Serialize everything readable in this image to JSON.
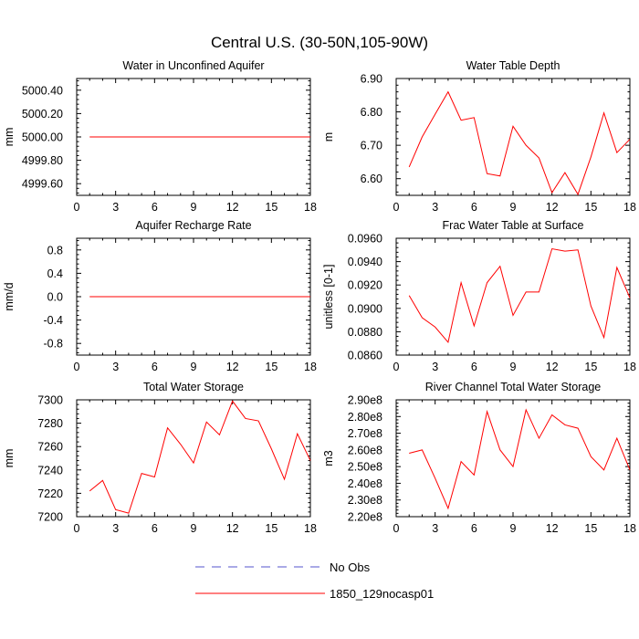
{
  "figure_title": "Central U.S. (30-50N,105-90W)",
  "legend": {
    "items": [
      {
        "label": "No Obs",
        "color": "#5555cc",
        "style": "dashed"
      },
      {
        "label": "1850_129nocasp01",
        "color": "#ff0000",
        "style": "solid"
      }
    ]
  },
  "chart_data": [
    {
      "type": "line",
      "title": "Water in Unconfined Aquifer",
      "ylabel": "mm",
      "xlabel": "",
      "xlim": [
        0,
        18
      ],
      "ylim": [
        4999.5,
        5000.5
      ],
      "xticks": [
        0,
        3,
        6,
        9,
        12,
        15,
        18
      ],
      "yticks": [
        4999.6,
        4999.8,
        5000.0,
        5000.2,
        5000.4
      ],
      "ytick_labels": [
        "4999.60",
        "4999.80",
        "5000.00",
        "5000.20",
        "5000.40"
      ],
      "series": [
        {
          "name": "1850_129nocasp01",
          "color": "#ff0000",
          "x": [
            1,
            2,
            3,
            4,
            5,
            6,
            7,
            8,
            9,
            10,
            11,
            12,
            13,
            14,
            15,
            16,
            17,
            18
          ],
          "y": [
            5000,
            5000,
            5000,
            5000,
            5000,
            5000,
            5000,
            5000,
            5000,
            5000,
            5000,
            5000,
            5000,
            5000,
            5000,
            5000,
            5000,
            5000
          ]
        }
      ]
    },
    {
      "type": "line",
      "title": "Water Table Depth",
      "ylabel": "m",
      "xlabel": "",
      "xlim": [
        0,
        18
      ],
      "ylim": [
        6.55,
        6.9
      ],
      "xticks": [
        0,
        3,
        6,
        9,
        12,
        15,
        18
      ],
      "yticks": [
        6.6,
        6.7,
        6.8,
        6.9
      ],
      "ytick_labels": [
        "6.60",
        "6.70",
        "6.80",
        "6.90"
      ],
      "series": [
        {
          "name": "1850_129nocasp01",
          "color": "#ff0000",
          "x": [
            1,
            2,
            3,
            4,
            5,
            6,
            7,
            8,
            9,
            10,
            11,
            12,
            13,
            14,
            15,
            16,
            17,
            18
          ],
          "y": [
            6.635,
            6.725,
            6.793,
            6.86,
            6.775,
            6.783,
            6.615,
            6.608,
            6.757,
            6.7,
            6.662,
            6.558,
            6.618,
            6.553,
            6.665,
            6.797,
            6.678,
            6.718
          ]
        }
      ]
    },
    {
      "type": "line",
      "title": "Aquifer Recharge Rate",
      "ylabel": "mm/d",
      "xlabel": "",
      "xlim": [
        0,
        18
      ],
      "ylim": [
        -1.0,
        1.0
      ],
      "xticks": [
        0,
        3,
        6,
        9,
        12,
        15,
        18
      ],
      "yticks": [
        -0.8,
        -0.4,
        0.0,
        0.4,
        0.8
      ],
      "ytick_labels": [
        "-0.8",
        "-0.4",
        "0.0",
        "0.4",
        "0.8"
      ],
      "series": [
        {
          "name": "1850_129nocasp01",
          "color": "#ff0000",
          "x": [
            1,
            2,
            3,
            4,
            5,
            6,
            7,
            8,
            9,
            10,
            11,
            12,
            13,
            14,
            15,
            16,
            17,
            18
          ],
          "y": [
            0,
            0,
            0,
            0,
            0,
            0,
            0,
            0,
            0,
            0,
            0,
            0,
            0,
            0,
            0,
            0,
            0,
            0
          ]
        }
      ]
    },
    {
      "type": "line",
      "title": "Frac Water Table at Surface",
      "ylabel": "unitless [0-1]",
      "xlabel": "",
      "xlim": [
        0,
        18
      ],
      "ylim": [
        0.086,
        0.096
      ],
      "xticks": [
        0,
        3,
        6,
        9,
        12,
        15,
        18
      ],
      "yticks": [
        0.086,
        0.088,
        0.09,
        0.092,
        0.094,
        0.096
      ],
      "ytick_labels": [
        "0.0860",
        "0.0880",
        "0.0900",
        "0.0920",
        "0.0940",
        "0.0960"
      ],
      "series": [
        {
          "name": "1850_129nocasp01",
          "color": "#ff0000",
          "x": [
            1,
            2,
            3,
            4,
            5,
            6,
            7,
            8,
            9,
            10,
            11,
            12,
            13,
            14,
            15,
            16,
            17,
            18
          ],
          "y": [
            0.0911,
            0.0892,
            0.0884,
            0.0871,
            0.0922,
            0.0885,
            0.0922,
            0.0936,
            0.0894,
            0.0914,
            0.0914,
            0.0951,
            0.0949,
            0.095,
            0.0902,
            0.0875,
            0.0935,
            0.0909
          ]
        }
      ]
    },
    {
      "type": "line",
      "title": "Total Water Storage",
      "ylabel": "mm",
      "xlabel": "",
      "xlim": [
        0,
        18
      ],
      "ylim": [
        7200,
        7300
      ],
      "xticks": [
        0,
        3,
        6,
        9,
        12,
        15,
        18
      ],
      "yticks": [
        7200,
        7220,
        7240,
        7260,
        7280,
        7300
      ],
      "ytick_labels": [
        "7200",
        "7220",
        "7240",
        "7260",
        "7280",
        "7300"
      ],
      "series": [
        {
          "name": "1850_129nocasp01",
          "color": "#ff0000",
          "x": [
            1,
            2,
            3,
            4,
            5,
            6,
            7,
            8,
            9,
            10,
            11,
            12,
            13,
            14,
            15,
            16,
            17,
            18
          ],
          "y": [
            7222,
            7231,
            7206,
            7203,
            7237,
            7234,
            7276,
            7262,
            7246,
            7281,
            7270,
            7299,
            7284,
            7282,
            7258,
            7232,
            7271,
            7248
          ]
        }
      ]
    },
    {
      "type": "line",
      "title": "River Channel Total Water Storage",
      "ylabel": "m3",
      "xlabel": "",
      "xlim": [
        0,
        18
      ],
      "ylim": [
        220000000,
        290000000
      ],
      "xticks": [
        0,
        3,
        6,
        9,
        12,
        15,
        18
      ],
      "yticks": [
        220000000,
        230000000,
        240000000,
        250000000,
        260000000,
        270000000,
        280000000,
        290000000
      ],
      "ytick_labels": [
        "2.20e8",
        "2.30e8",
        "2.40e8",
        "2.50e8",
        "2.60e8",
        "2.70e8",
        "2.80e8",
        "2.90e8"
      ],
      "series": [
        {
          "name": "1850_129nocasp01",
          "color": "#ff0000",
          "x": [
            1,
            2,
            3,
            4,
            5,
            6,
            7,
            8,
            9,
            10,
            11,
            12,
            13,
            14,
            15,
            16,
            17,
            18
          ],
          "y": [
            258000000,
            260000000,
            243000000,
            225000000,
            253000000,
            245000000,
            283000000,
            260000000,
            250000000,
            284000000,
            267000000,
            281000000,
            275000000,
            273000000,
            256000000,
            248000000,
            267000000,
            248000000
          ]
        }
      ]
    }
  ]
}
